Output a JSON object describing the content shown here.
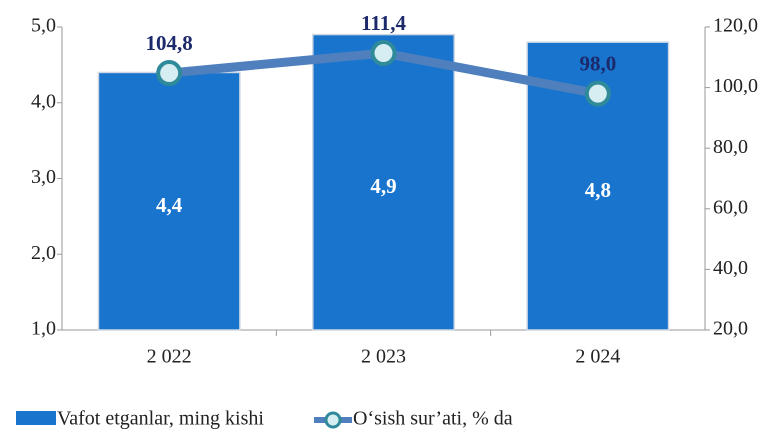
{
  "chart_data": {
    "type": "bar",
    "categories": [
      "2 022",
      "2 023",
      "2 024"
    ],
    "series": [
      {
        "name": "Vafot etganlar, ming kishi",
        "type": "bar",
        "color": "#1874cd",
        "values": [
          4.4,
          4.9,
          4.8
        ],
        "value_labels": [
          "4,4",
          "4,9",
          "4,8"
        ]
      },
      {
        "name": "O‘sish sur’ati, % da",
        "type": "line",
        "axis": "y2",
        "color": "#4f7fbd",
        "values": [
          104.8,
          111.4,
          98.0
        ],
        "value_labels": [
          "104,8",
          "111,4",
          "98,0"
        ]
      }
    ],
    "ylim": [
      1,
      5
    ],
    "yticks": [
      {
        "value": 1,
        "label": "1,0"
      },
      {
        "value": 2,
        "label": "2,0"
      },
      {
        "value": 3,
        "label": "3,0"
      },
      {
        "value": 4,
        "label": "4,0"
      },
      {
        "value": 5,
        "label": "5,0"
      }
    ],
    "y2lim": [
      20,
      120
    ],
    "y2ticks": [
      {
        "value": 20,
        "label": "20,0"
      },
      {
        "value": 40,
        "label": "40,0"
      },
      {
        "value": 60,
        "label": "60,0"
      },
      {
        "value": 80,
        "label": "80,0"
      },
      {
        "value": 100,
        "label": "100,0"
      },
      {
        "value": 120,
        "label": "120,0"
      }
    ]
  }
}
